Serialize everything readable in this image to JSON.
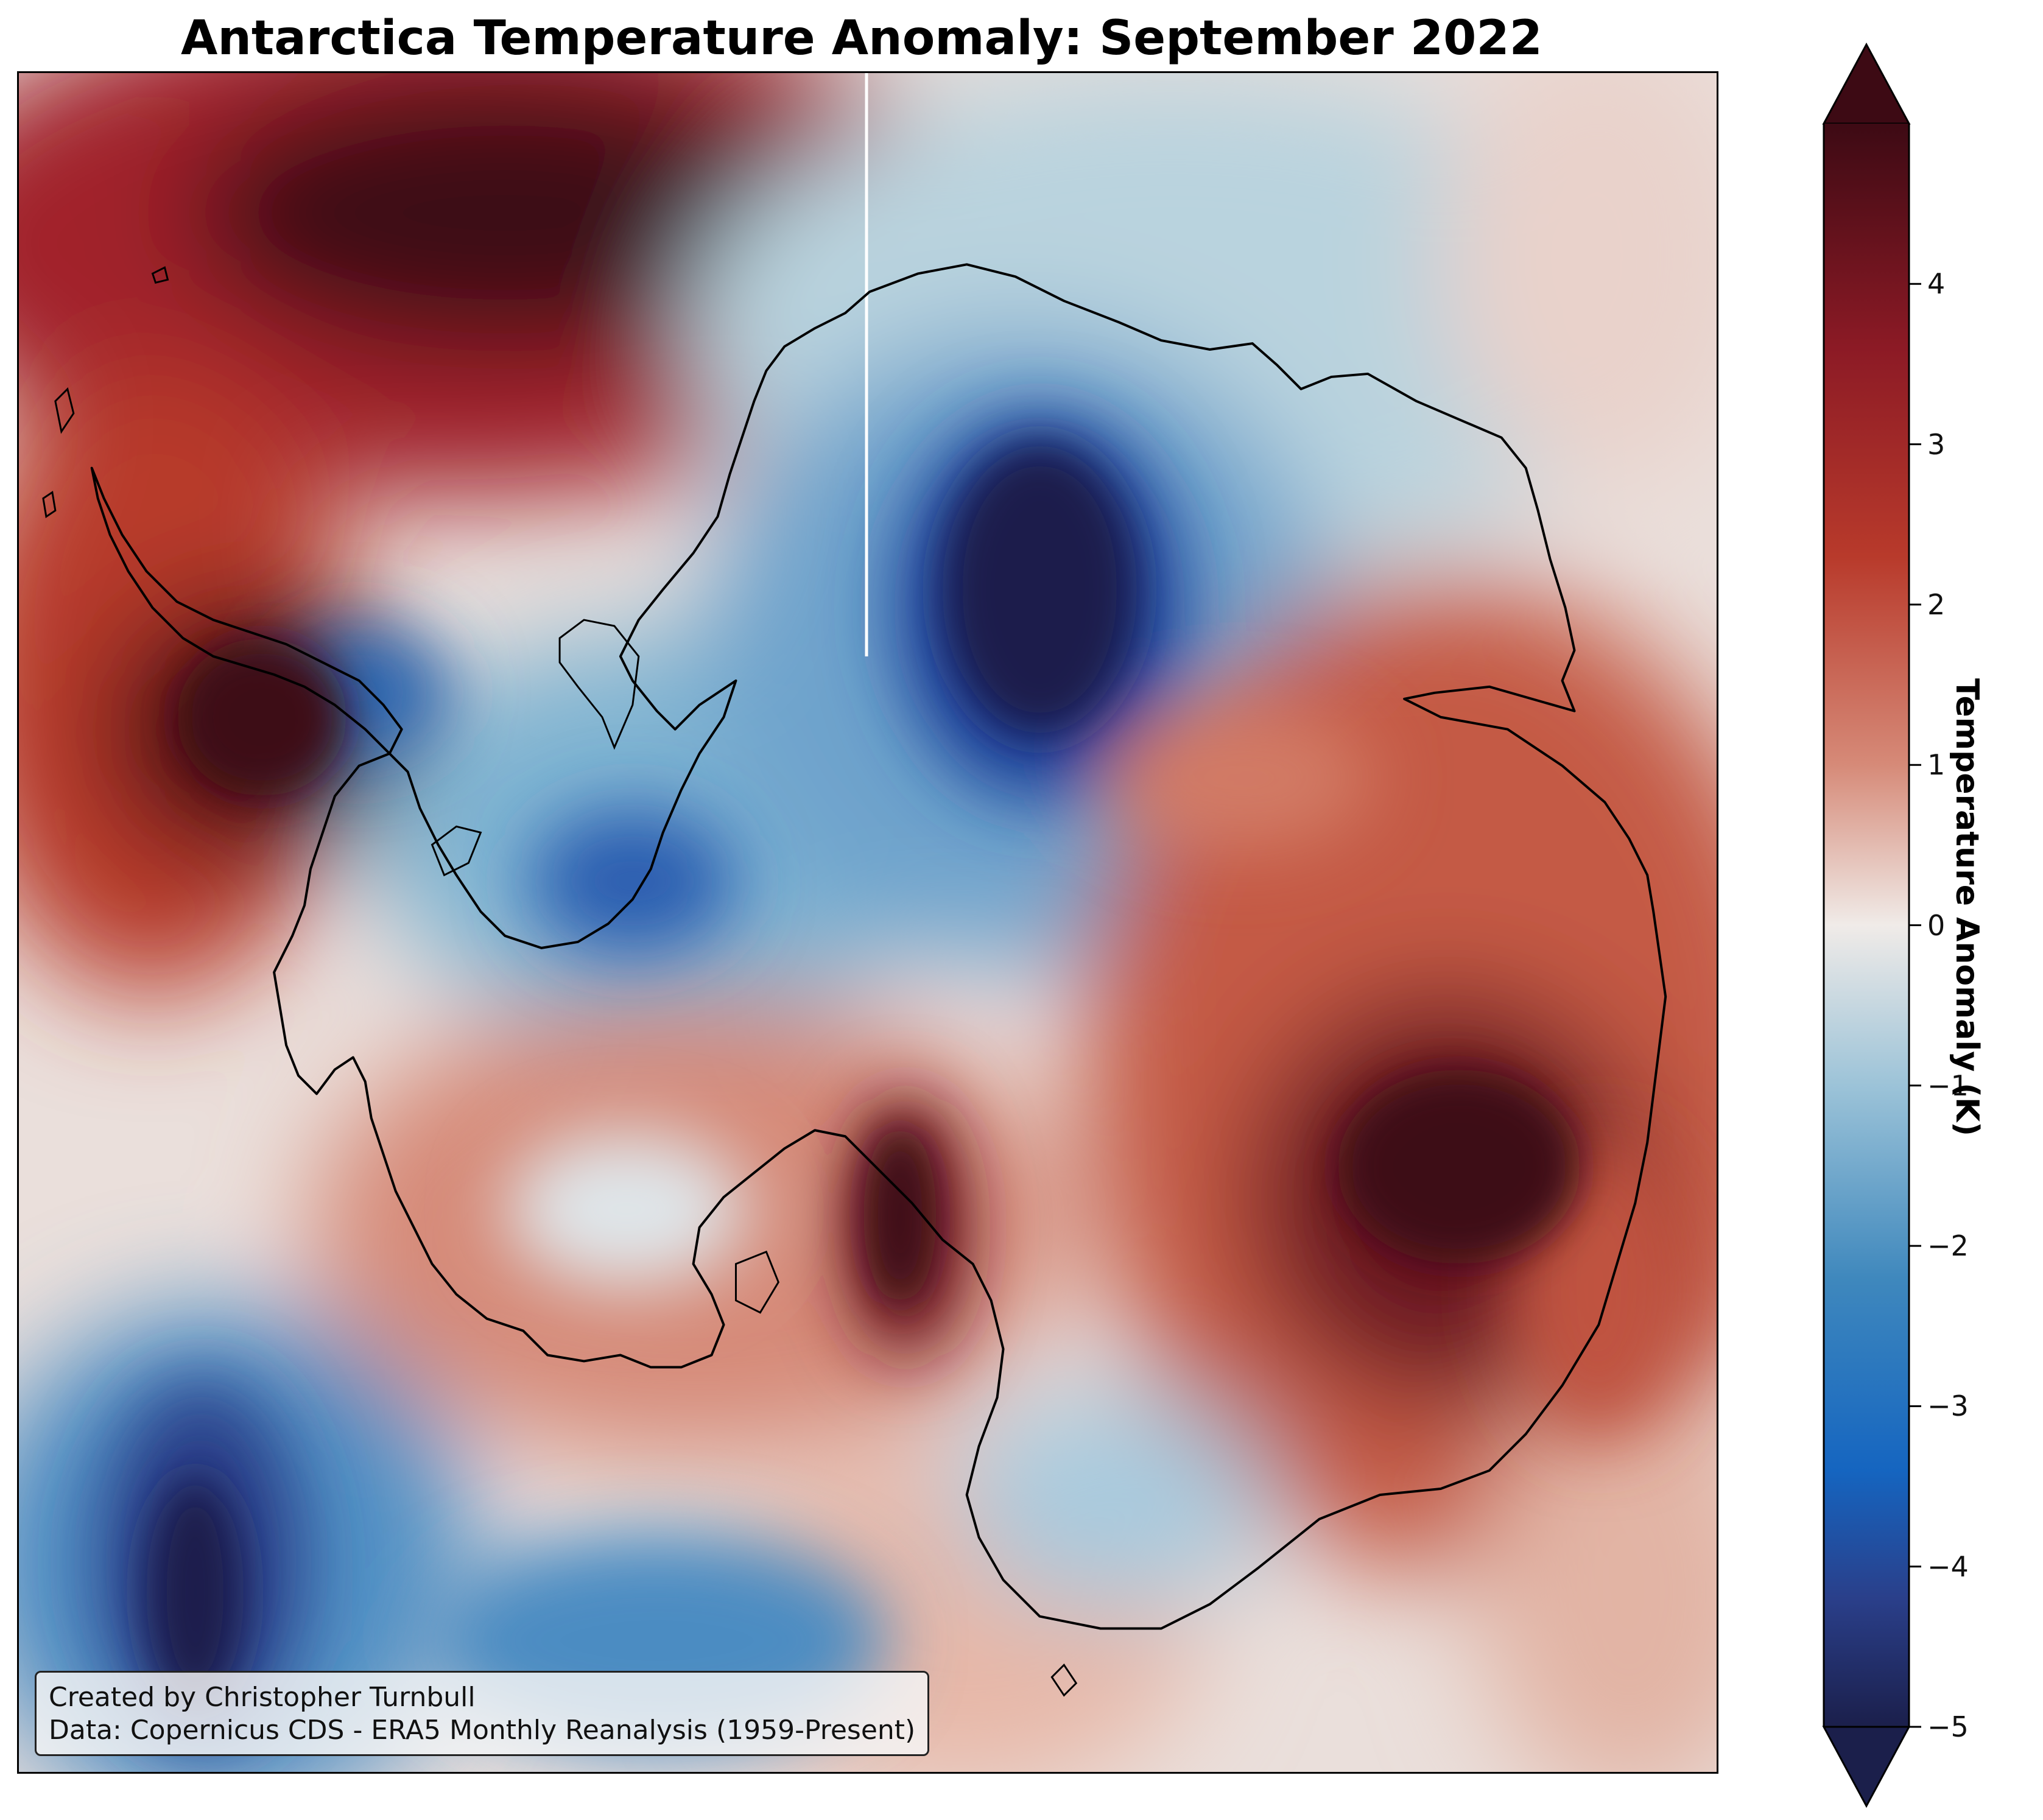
{
  "title": "Antarctica Temperature Anomaly: September 2022",
  "map": {
    "region": "Antarctica",
    "variable": "Temperature Anomaly",
    "month": "September 2022",
    "colormap": "blue-white-red diverging",
    "colors": {
      "deep_blue": "#1b1f4b",
      "blue": "#1565c0",
      "light_blue": "#8fc1d9",
      "neutral": "#f0ebe8",
      "light_red": "#e3a593",
      "red": "#b83a2b",
      "deep_red": "#3d0a14",
      "coastline": "#000000"
    }
  },
  "credit": {
    "line1": "Created by Christopher Turnbull",
    "line2": "Data: Copernicus CDS - ERA5 Monthly Reanalysis (1959-Present)"
  },
  "colorbar": {
    "label": "Temperature Anomaly (K)",
    "min": -5,
    "max": 5,
    "extend": "both",
    "ticks": [
      "4",
      "3",
      "2",
      "1",
      "0",
      "−1",
      "−2",
      "−3",
      "−4",
      "−5"
    ],
    "tick_values": [
      4,
      3,
      2,
      1,
      0,
      -1,
      -2,
      -3,
      -4,
      -5
    ]
  }
}
